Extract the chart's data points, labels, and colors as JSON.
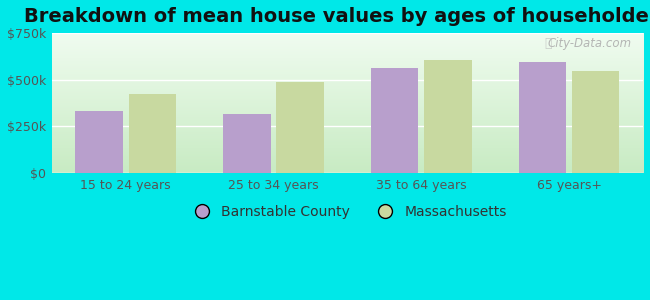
{
  "title": "Breakdown of mean house values by ages of householders",
  "categories": [
    "15 to 24 years",
    "25 to 34 years",
    "35 to 64 years",
    "65 years+"
  ],
  "barnstable_values": [
    330000,
    315000,
    565000,
    595000
  ],
  "massachusetts_values": [
    425000,
    490000,
    605000,
    548000
  ],
  "barnstable_color": "#b89fcc",
  "massachusetts_color": "#c8d9a0",
  "background_color": "#00e8e8",
  "ylim": [
    0,
    750000
  ],
  "yticks": [
    0,
    250000,
    500000,
    750000
  ],
  "ytick_labels": [
    "$0",
    "$250k",
    "$500k",
    "$750k"
  ],
  "legend_labels": [
    "Barnstable County",
    "Massachusetts"
  ],
  "watermark": "City-Data.com",
  "bar_width": 0.32,
  "title_fontsize": 14,
  "tick_fontsize": 9,
  "legend_fontsize": 10,
  "plot_bg_top": "#f0faf0",
  "plot_bg_bottom": "#d8f0d0",
  "grid_color": "#ffffff"
}
